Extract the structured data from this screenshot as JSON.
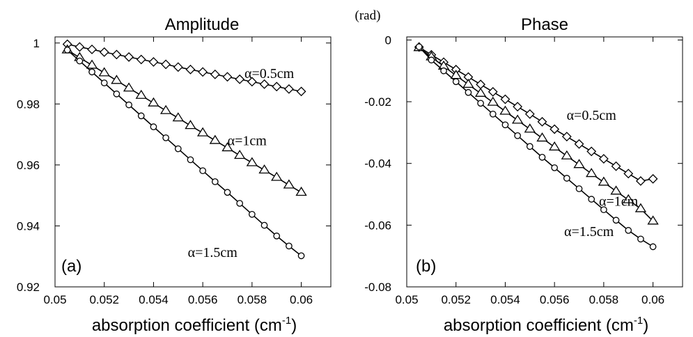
{
  "chart_data": [
    {
      "type": "line",
      "title": "Amplitude",
      "panel_label": "(a)",
      "xlabel": "absorption coefficient (cm",
      "xlabel_sup": "-1",
      "xlabel_close": ")",
      "ylabel": "",
      "xlim": [
        0.05,
        0.0612
      ],
      "ylim": [
        0.92,
        1.002
      ],
      "xticks": [
        0.05,
        0.052,
        0.054,
        0.056,
        0.058,
        0.06
      ],
      "xtick_labels": [
        "0.05",
        "0.052",
        "0.054",
        "0.056",
        "0.058",
        "0.06"
      ],
      "yticks": [
        0.92,
        0.94,
        0.96,
        0.98,
        1.0
      ],
      "ytick_labels": [
        "0.92",
        "0.94",
        "0.96",
        "0.98",
        "1"
      ],
      "x": [
        0.0505,
        0.051,
        0.0515,
        0.052,
        0.0525,
        0.053,
        0.0535,
        0.054,
        0.0545,
        0.055,
        0.0555,
        0.056,
        0.0565,
        0.057,
        0.0575,
        0.058,
        0.0585,
        0.059,
        0.0595,
        0.06
      ],
      "series": [
        {
          "name": "α=0.5cm",
          "marker": "diamond",
          "label_at": [
            0.0587,
            0.9885
          ],
          "values": [
            0.9996,
            0.9987,
            0.9979,
            0.997,
            0.9962,
            0.9954,
            0.9946,
            0.9938,
            0.993,
            0.9921,
            0.9913,
            0.9905,
            0.9897,
            0.9889,
            0.9881,
            0.9873,
            0.9865,
            0.9857,
            0.9849,
            0.9841
          ]
        },
        {
          "name": "α=1cm",
          "marker": "triangle",
          "label_at": [
            0.0578,
            0.9665
          ],
          "values": [
            0.9977,
            0.9952,
            0.9927,
            0.9902,
            0.9877,
            0.9852,
            0.9828,
            0.9803,
            0.9778,
            0.9754,
            0.9729,
            0.9705,
            0.968,
            0.9656,
            0.9631,
            0.9607,
            0.9583,
            0.9559,
            0.9534,
            0.951
          ]
        },
        {
          "name": "α=1.5cm",
          "marker": "circle",
          "label_at": [
            0.0564,
            0.9298
          ],
          "values": [
            0.9977,
            0.9941,
            0.9905,
            0.9869,
            0.9833,
            0.9797,
            0.9761,
            0.9725,
            0.9689,
            0.9653,
            0.9617,
            0.9581,
            0.9545,
            0.951,
            0.9474,
            0.9438,
            0.9402,
            0.9367,
            0.9334,
            0.9302
          ]
        }
      ]
    },
    {
      "type": "line",
      "title": "Phase",
      "panel_label": "(b)",
      "unit_label": "(rad)",
      "xlabel": "absorption coefficient (cm",
      "xlabel_sup": "-1",
      "xlabel_close": ")",
      "ylabel": "",
      "xlim": [
        0.05,
        0.0612
      ],
      "ylim": [
        -0.08,
        0.001
      ],
      "xticks": [
        0.05,
        0.052,
        0.054,
        0.056,
        0.058,
        0.06
      ],
      "xtick_labels": [
        "0.05",
        "0.052",
        "0.054",
        "0.056",
        "0.058",
        "0.06"
      ],
      "yticks": [
        -0.08,
        -0.06,
        -0.04,
        -0.02,
        0.0
      ],
      "ytick_labels": [
        "-0.08",
        "-0.06",
        "-0.04",
        "-0.02",
        "0"
      ],
      "x": [
        0.0505,
        0.051,
        0.0515,
        0.052,
        0.0525,
        0.053,
        0.0535,
        0.054,
        0.0545,
        0.055,
        0.0555,
        0.056,
        0.0565,
        0.057,
        0.0575,
        0.058,
        0.0585,
        0.059,
        0.0595,
        0.06
      ],
      "series": [
        {
          "name": "α=0.5cm",
          "marker": "diamond",
          "label_at": [
            0.0575,
            -0.0258
          ],
          "values": [
            -0.0023,
            -0.0048,
            -0.0072,
            -0.0096,
            -0.012,
            -0.0144,
            -0.0168,
            -0.0192,
            -0.0216,
            -0.024,
            -0.0265,
            -0.0289,
            -0.0313,
            -0.0337,
            -0.0361,
            -0.0385,
            -0.0409,
            -0.0433,
            -0.0457,
            -0.045
          ]
        },
        {
          "name": "α=1cm",
          "marker": "triangle",
          "label_at": [
            0.0586,
            -0.0537
          ],
          "values": [
            -0.0025,
            -0.0055,
            -0.0085,
            -0.0115,
            -0.0144,
            -0.0173,
            -0.0202,
            -0.0231,
            -0.026,
            -0.0289,
            -0.0318,
            -0.0347,
            -0.0376,
            -0.0404,
            -0.0433,
            -0.0461,
            -0.049,
            -0.0518,
            -0.0547,
            -0.0587
          ]
        },
        {
          "name": "α=1.5cm",
          "marker": "circle",
          "label_at": [
            0.0574,
            -0.0635
          ],
          "values": [
            -0.0022,
            -0.0065,
            -0.01,
            -0.0135,
            -0.017,
            -0.0205,
            -0.024,
            -0.0275,
            -0.031,
            -0.0345,
            -0.038,
            -0.0414,
            -0.0448,
            -0.0482,
            -0.0516,
            -0.055,
            -0.0584,
            -0.0617,
            -0.0645,
            -0.067
          ]
        }
      ]
    }
  ]
}
